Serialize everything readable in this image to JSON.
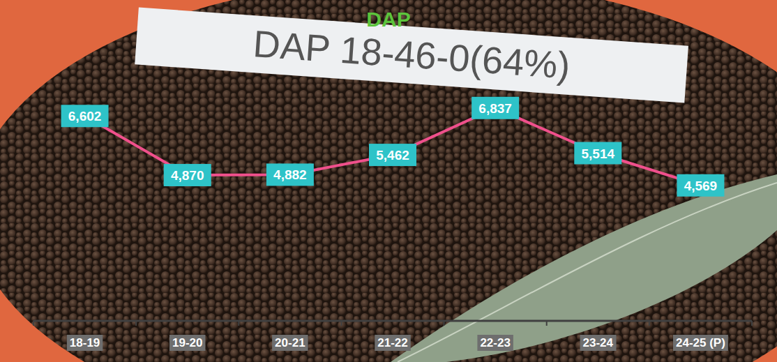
{
  "chart_data": {
    "type": "line",
    "title": "DAP",
    "annotations": [
      "DAP 18-46-0(64%)"
    ],
    "categories": [
      "18-19",
      "19-20",
      "20-21",
      "21-22",
      "22-23",
      "23-24",
      "24-25 (P)"
    ],
    "values": [
      6602,
      4870,
      4882,
      5462,
      6837,
      5514,
      4569
    ],
    "value_labels": [
      "6,602",
      "4,870",
      "4,882",
      "5,462",
      "6,837",
      "5,514",
      "4,569"
    ],
    "color": "#f0508c",
    "ylim": [
      600,
      10000
    ],
    "data_labels": true,
    "tick_labels": "x",
    "grid": false
  }
}
